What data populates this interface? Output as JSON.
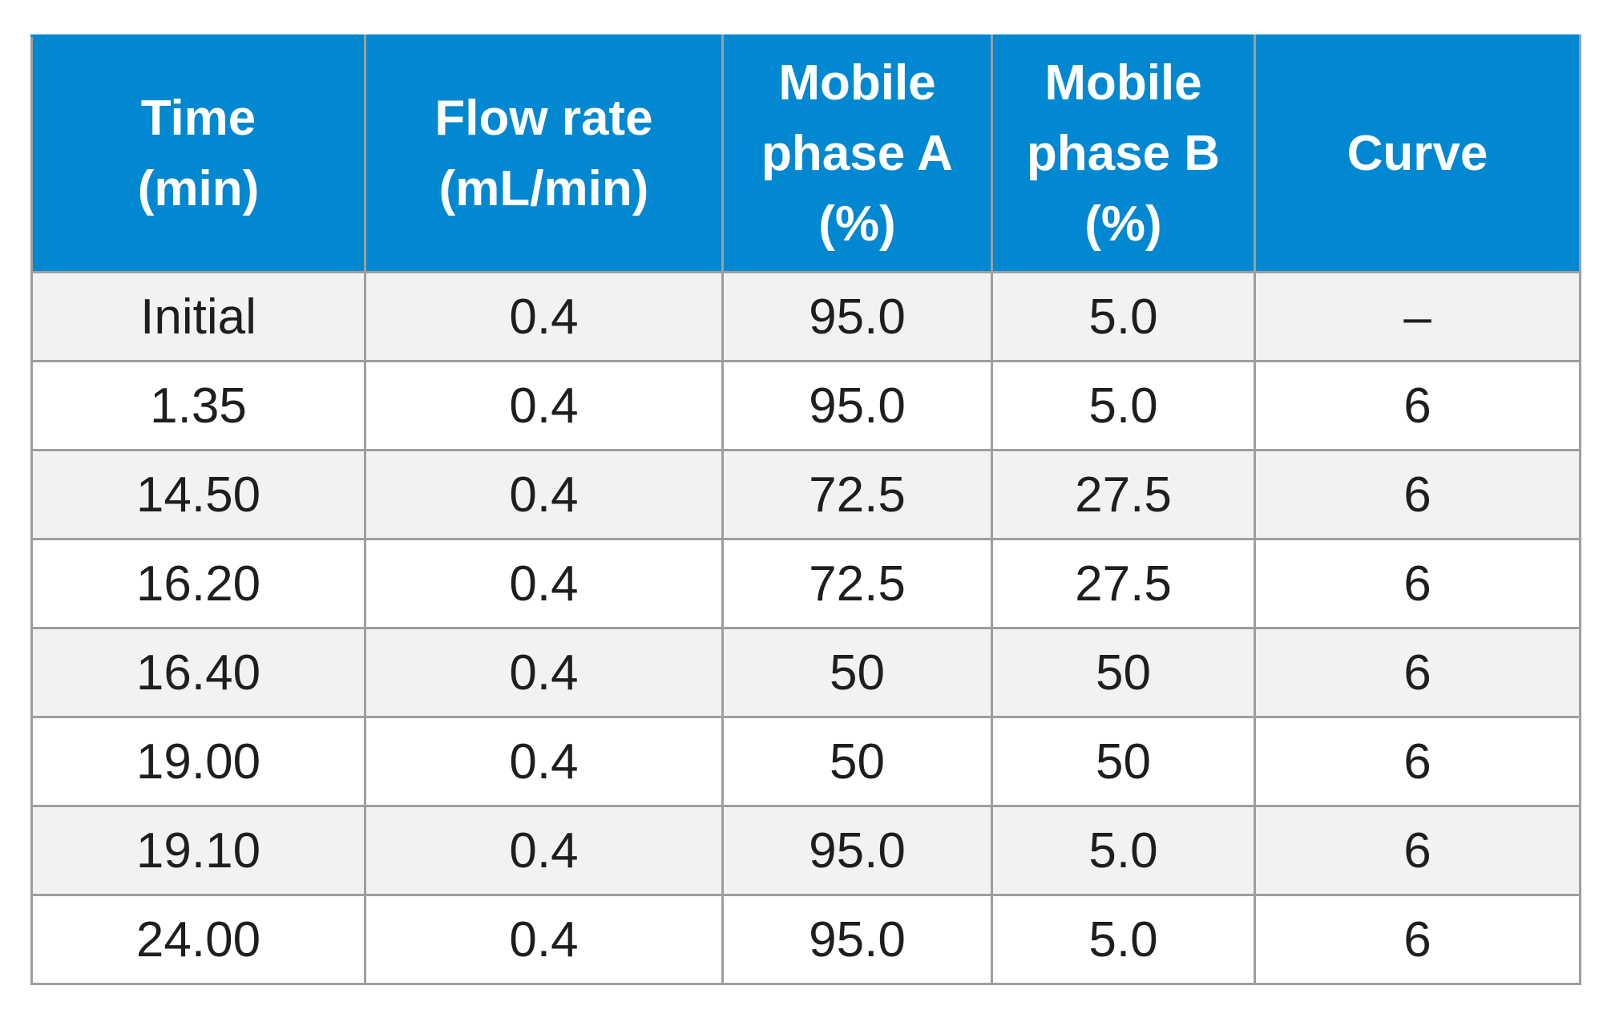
{
  "table": {
    "headers": [
      [
        "Time",
        "(min)"
      ],
      [
        "Flow rate",
        "(mL/min)"
      ],
      [
        "Mobile",
        "phase A",
        "(%)"
      ],
      [
        "Mobile",
        "phase B",
        "(%)"
      ],
      [
        "Curve"
      ]
    ],
    "rows": [
      [
        "Initial",
        "0.4",
        "95.0",
        "5.0",
        "–"
      ],
      [
        "1.35",
        "0.4",
        "95.0",
        "5.0",
        "6"
      ],
      [
        "14.50",
        "0.4",
        "72.5",
        "27.5",
        "6"
      ],
      [
        "16.20",
        "0.4",
        "72.5",
        "27.5",
        "6"
      ],
      [
        "16.40",
        "0.4",
        "50",
        "50",
        "6"
      ],
      [
        "19.00",
        "0.4",
        "50",
        "50",
        "6"
      ],
      [
        "19.10",
        "0.4",
        "95.0",
        "5.0",
        "6"
      ],
      [
        "24.00",
        "0.4",
        "95.0",
        "5.0",
        "6"
      ]
    ]
  },
  "colors": {
    "header_bg": "#0288d1",
    "header_text": "#ffffff",
    "row_shaded": "#f2f2f4",
    "row_plain": "#ffffff",
    "border": "#9e9e9e"
  }
}
